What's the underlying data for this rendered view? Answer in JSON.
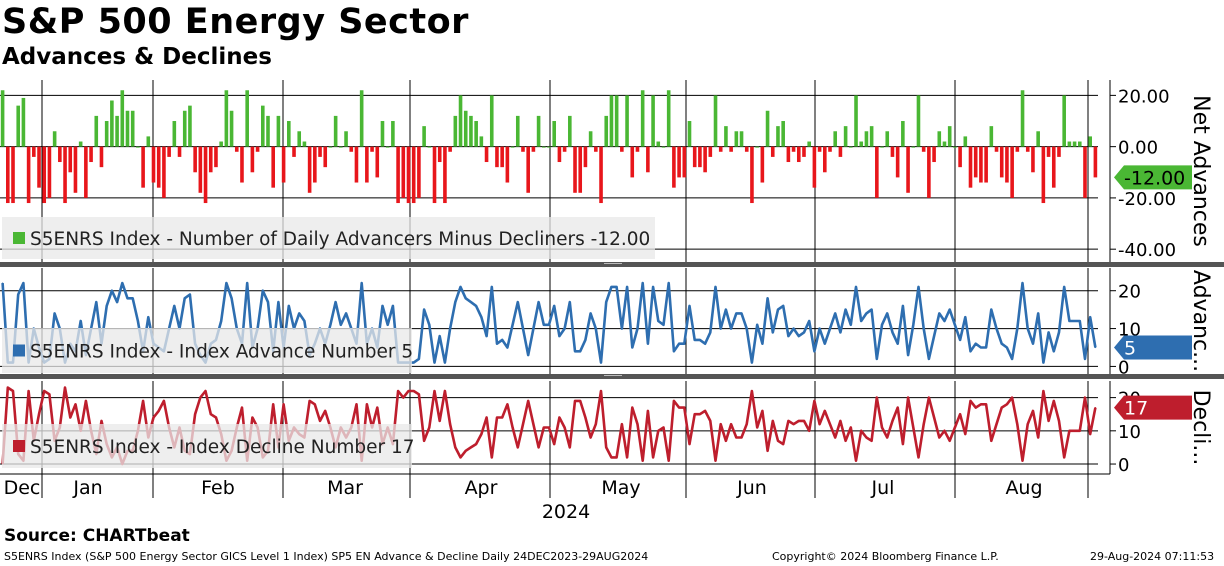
{
  "header": {
    "title": "S&P 500 Energy Sector",
    "subtitle": "Advances & Declines"
  },
  "footer": {
    "source": "Source: CHARTbeat",
    "description": "S5ENRS Index (S&P 500 Energy Sector GICS Level 1 Index) SP5 EN Advance & Decline  Daily 24DEC2023-29AUG2024",
    "copyright": "Copyright© 2024 Bloomberg Finance L.P.",
    "timestamp": "29-Aug-2024 07:11:53"
  },
  "colors": {
    "advance": "#4ab734",
    "decline": "#e8161b",
    "advance_line": "#2e6eb0",
    "decline_line": "#be1e2d",
    "grid": "#000000"
  },
  "chart_data": {
    "type": "bar",
    "x_axis": {
      "months": [
        "Dec",
        "Jan",
        "Feb",
        "Mar",
        "Apr",
        "May",
        "Jun",
        "Jul",
        "Aug"
      ],
      "year_label": "2024"
    },
    "panels": [
      {
        "name": "net-advances",
        "type": "bar",
        "ylabel": "Net Advances",
        "ylim": [
          -45,
          26
        ],
        "ticks": [
          "20.00",
          "0.00",
          "-20.00",
          "-40.00"
        ],
        "tick_values": [
          20,
          0,
          -20,
          -40
        ],
        "legend": "S5ENRS Index - Number of Daily Advancers Minus Decliners -12.00",
        "last_label": "-12.00",
        "values": [
          22,
          -22,
          -22,
          16,
          19,
          -22,
          -4,
          -16,
          -22,
          -20,
          6,
          -6,
          -22,
          -10,
          -18,
          2,
          -20,
          -6,
          12,
          -8,
          10,
          18,
          12,
          22,
          14,
          14,
          0,
          -16,
          4,
          -14,
          -16,
          -20,
          -4,
          10,
          -4,
          14,
          16,
          -10,
          -18,
          -22,
          -10,
          -8,
          2,
          22,
          14,
          -2,
          -14,
          22,
          -10,
          -2,
          16,
          12,
          -16,
          12,
          -14,
          10,
          -4,
          6,
          2,
          -18,
          -14,
          -4,
          -8,
          0,
          12,
          0,
          6,
          -2,
          -14,
          22,
          -14,
          -2,
          -12,
          10,
          0,
          10,
          -22,
          -20,
          -22,
          -22,
          -20,
          8,
          0,
          -22,
          -6,
          -22,
          -2,
          12,
          20,
          14,
          12,
          10,
          4,
          -6,
          20,
          -8,
          -8,
          -14,
          0,
          12,
          -2,
          -18,
          -2,
          12,
          0,
          0,
          10,
          -6,
          -2,
          12,
          -18,
          -18,
          -8,
          6,
          -2,
          -22,
          12,
          20,
          20,
          -2,
          20,
          -12,
          -2,
          22,
          -10,
          20,
          2,
          0,
          22,
          -16,
          -12,
          -12,
          10,
          -8,
          -8,
          -10,
          -4,
          20,
          -2,
          8,
          -2,
          6,
          6,
          -2,
          -22,
          0,
          -14,
          14,
          -4,
          8,
          10,
          -6,
          -2,
          -6,
          -4,
          2,
          -16,
          -2,
          -10,
          -2,
          6,
          -4,
          8,
          0,
          20,
          2,
          6,
          8,
          -20,
          0,
          6,
          -4,
          -12,
          10,
          -18,
          0,
          20,
          -2,
          -20,
          -6,
          6,
          2,
          8,
          0,
          -8,
          4,
          -16,
          -12,
          -14,
          -14,
          8,
          -2,
          -12,
          -14,
          -20,
          -2,
          22,
          -2,
          -10,
          6,
          -22,
          -4,
          -16,
          -4,
          20,
          2,
          2,
          2,
          -20,
          4,
          -12
        ]
      },
      {
        "name": "advance-number",
        "type": "line",
        "ylabel": "Advanc...",
        "ylim": [
          -2,
          26
        ],
        "ticks": [
          "20",
          "10",
          "0"
        ],
        "tick_values": [
          20,
          10,
          0
        ],
        "legend": "S5ENRS Index - Index Advance Number 5",
        "last_label": "5",
        "values": [
          22,
          1,
          1,
          19,
          22,
          1,
          10,
          5,
          1,
          2,
          14,
          10,
          1,
          6,
          4,
          12,
          3,
          10,
          17,
          6,
          16,
          20,
          17,
          22,
          18,
          18,
          12,
          4,
          13,
          6,
          5,
          4,
          10,
          16,
          10,
          18,
          19,
          6,
          3,
          1,
          6,
          7,
          12,
          22,
          18,
          10,
          6,
          22,
          5,
          10,
          20,
          17,
          4,
          17,
          5,
          16,
          10,
          14,
          12,
          3,
          6,
          10,
          6,
          11,
          17,
          11,
          14,
          10,
          6,
          22,
          6,
          10,
          5,
          16,
          11,
          16,
          1,
          1,
          1,
          1,
          2,
          15,
          11,
          1,
          8,
          1,
          10,
          17,
          21,
          18,
          17,
          16,
          13,
          8,
          21,
          6,
          7,
          5,
          11,
          17,
          10,
          3,
          10,
          17,
          11,
          11,
          16,
          8,
          10,
          17,
          4,
          4,
          7,
          14,
          10,
          1,
          17,
          21,
          21,
          10,
          21,
          5,
          10,
          22,
          6,
          21,
          12,
          11,
          22,
          4,
          6,
          6,
          16,
          7,
          7,
          6,
          9,
          21,
          10,
          15,
          10,
          14,
          14,
          10,
          1,
          11,
          6,
          18,
          9,
          15,
          16,
          8,
          10,
          8,
          9,
          12,
          4,
          10,
          6,
          10,
          14,
          9,
          15,
          11,
          21,
          12,
          14,
          15,
          2,
          11,
          14,
          9,
          6,
          16,
          3,
          11,
          21,
          10,
          2,
          8,
          14,
          12,
          15,
          11,
          7,
          13,
          4,
          6,
          5,
          5,
          15,
          10,
          6,
          5,
          2,
          10,
          22,
          10,
          6,
          14,
          1,
          9,
          4,
          9,
          21,
          12,
          12,
          12,
          2,
          13,
          5
        ]
      },
      {
        "name": "decline-number",
        "type": "line",
        "ylabel": "Decli...",
        "ylim": [
          -3,
          25
        ],
        "ticks": [
          "20",
          "10",
          "0"
        ],
        "tick_values": [
          20,
          10,
          0
        ],
        "legend": "S5ENRS Index - Index Decline Number 17",
        "last_label": "17",
        "values": [
          0,
          23,
          22,
          3,
          1,
          22,
          7,
          15,
          22,
          21,
          7,
          11,
          23,
          14,
          18,
          10,
          19,
          10,
          3,
          13,
          6,
          2,
          5,
          0,
          4,
          4,
          10,
          19,
          8,
          14,
          16,
          19,
          11,
          5,
          11,
          4,
          3,
          15,
          20,
          22,
          15,
          14,
          9,
          1,
          4,
          11,
          17,
          1,
          14,
          11,
          2,
          4,
          18,
          5,
          18,
          7,
          11,
          9,
          8,
          19,
          18,
          13,
          16,
          11,
          5,
          11,
          8,
          11,
          18,
          1,
          18,
          11,
          17,
          6,
          11,
          6,
          22,
          20,
          22,
          22,
          21,
          7,
          11,
          22,
          13,
          22,
          12,
          5,
          2,
          4,
          5,
          6,
          9,
          14,
          2,
          14,
          14,
          18,
          11,
          5,
          12,
          19,
          12,
          5,
          11,
          11,
          6,
          14,
          11,
          5,
          19,
          19,
          14,
          8,
          12,
          22,
          5,
          2,
          2,
          12,
          2,
          17,
          12,
          1,
          16,
          2,
          10,
          11,
          1,
          19,
          17,
          17,
          6,
          15,
          15,
          16,
          13,
          1,
          12,
          7,
          12,
          8,
          8,
          12,
          22,
          11,
          16,
          4,
          13,
          7,
          6,
          13,
          12,
          13,
          13,
          10,
          19,
          12,
          16,
          12,
          8,
          13,
          7,
          11,
          1,
          10,
          8,
          7,
          20,
          11,
          8,
          13,
          17,
          6,
          20,
          11,
          2,
          12,
          20,
          14,
          8,
          10,
          7,
          11,
          15,
          9,
          19,
          17,
          18,
          18,
          7,
          12,
          17,
          18,
          20,
          12,
          1,
          12,
          16,
          8,
          22,
          13,
          19,
          13,
          2,
          10,
          10,
          10,
          20,
          9,
          17
        ]
      }
    ]
  }
}
